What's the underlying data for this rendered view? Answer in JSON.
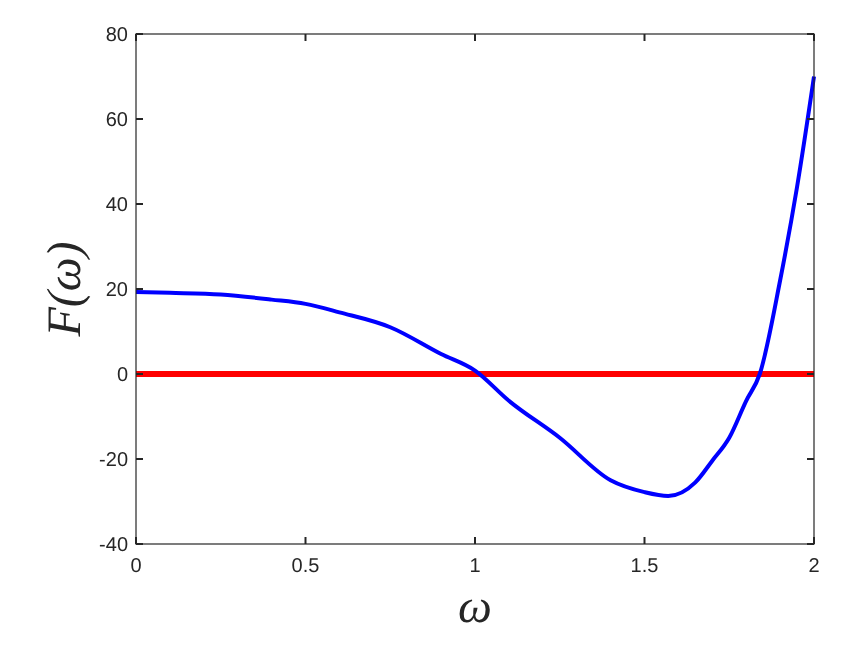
{
  "chart_data": {
    "type": "line",
    "xlabel": "ω",
    "ylabel": "F(ω)",
    "xlim": [
      0,
      2
    ],
    "ylim": [
      -40,
      80
    ],
    "xticks": [
      0,
      0.5,
      1,
      1.5,
      2
    ],
    "yticks": [
      -40,
      -20,
      0,
      20,
      40,
      60,
      80
    ],
    "grid": false,
    "marker": "none",
    "line_style": "solid",
    "series": [
      {
        "color": "#0000ff",
        "x": [
          0,
          0.1,
          0.25,
          0.4,
          0.5,
          0.6,
          0.75,
          0.9,
          1,
          1.1,
          1.25,
          1.4,
          1.5,
          1.57,
          1.65,
          1.7,
          1.75,
          1.8,
          1.84,
          1.9,
          1.95,
          2
        ],
        "values": [
          19.3,
          19.1,
          18.7,
          17.5,
          16.5,
          14.5,
          11,
          4.7,
          0.8,
          -6.3,
          -15,
          -25,
          -27.8,
          -28.7,
          -25.5,
          -20.4,
          -15,
          -6.3,
          0,
          22,
          44,
          70
        ]
      }
    ],
    "ref_lines": [
      {
        "axis": "y",
        "value": 0,
        "color": "#ff0000",
        "line_style": "solid"
      }
    ]
  }
}
